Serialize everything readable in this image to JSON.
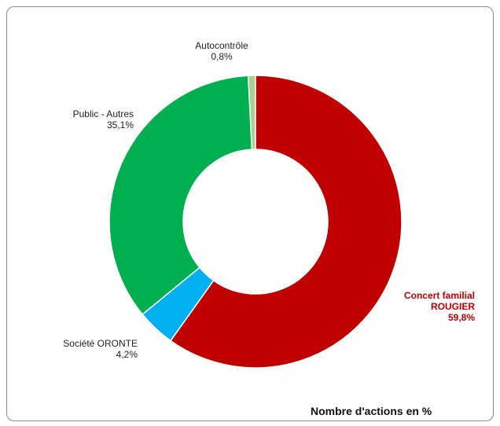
{
  "chart_data": {
    "type": "pie",
    "variant": "donut",
    "title": "Nombre d'actions en %",
    "slices": [
      {
        "label_line1": "Autocontrôle",
        "label_line2": "",
        "value_text": "0,8%",
        "value": 0.8,
        "color": "#a9d08e"
      },
      {
        "label_line1": "Concert familial",
        "label_line2": "ROUGIER",
        "value_text": "59,8%",
        "value": 59.8,
        "color": "#c00000"
      },
      {
        "label_line1": "Société ORONTE",
        "label_line2": "",
        "value_text": "4,2%",
        "value": 4.2,
        "color": "#00b0f0"
      },
      {
        "label_line1": "Public - Autres",
        "label_line2": "",
        "value_text": "35,1%",
        "value": 35.1,
        "color": "#00b050"
      }
    ],
    "highlight_label_color": "#c00000",
    "legend": "none"
  }
}
